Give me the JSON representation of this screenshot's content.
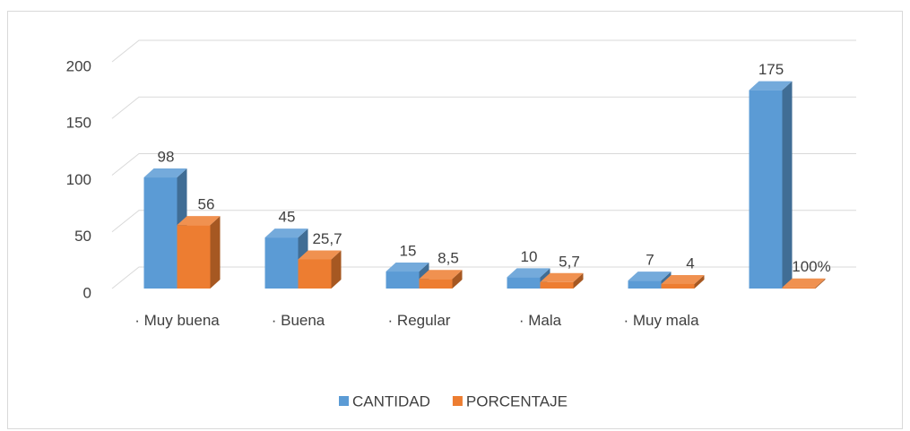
{
  "chart_data": {
    "type": "bar3d",
    "categories": [
      "· Muy buena",
      "· Buena",
      "· Regular",
      "· Mala",
      "· Muy mala",
      null
    ],
    "series": [
      {
        "name": "CANTIDAD",
        "color": "#5b9bd5",
        "values": [
          98,
          45,
          15,
          10,
          7,
          175
        ]
      },
      {
        "name": "PORCENTAJE",
        "color": "#ed7d31",
        "values": [
          56,
          25.7,
          8.5,
          5.7,
          4,
          1
        ],
        "value_labels": [
          "56",
          "25,7",
          "8,5",
          "5,7",
          "4",
          "100%"
        ]
      }
    ],
    "ylim": [
      0,
      200
    ],
    "yticks": [
      0,
      50,
      100,
      150,
      200
    ],
    "grid": true,
    "legend": "bottom"
  }
}
